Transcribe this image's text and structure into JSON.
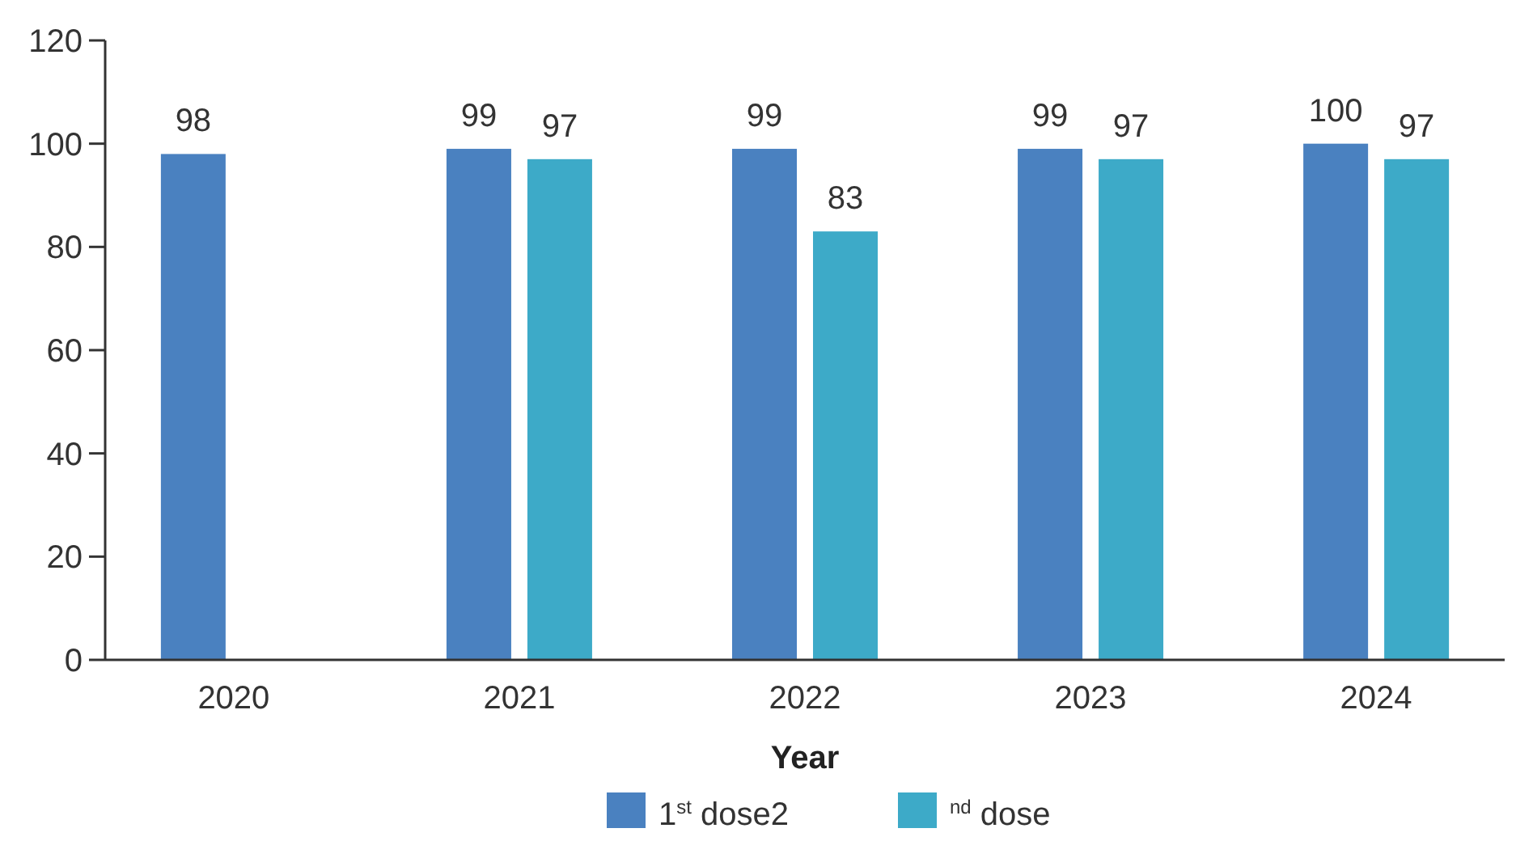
{
  "chart_data": {
    "type": "bar",
    "xlabel": "Year",
    "categories": [
      "2020",
      "2021",
      "2022",
      "2023",
      "2024"
    ],
    "series": [
      {
        "name": "1$^{st}$ dose2",
        "color": "#4a81c0",
        "values": [
          98,
          99,
          99,
          99,
          100
        ]
      },
      {
        "name": "$^{nd}$ dose",
        "color": "#3daac8",
        "values": [
          null,
          97,
          83,
          97,
          97
        ]
      }
    ],
    "ylim": [
      0,
      120
    ],
    "yticks": [
      0,
      20,
      40,
      60,
      80,
      100,
      120
    ],
    "data_labels": true,
    "legend": "bottom",
    "grid": false
  }
}
